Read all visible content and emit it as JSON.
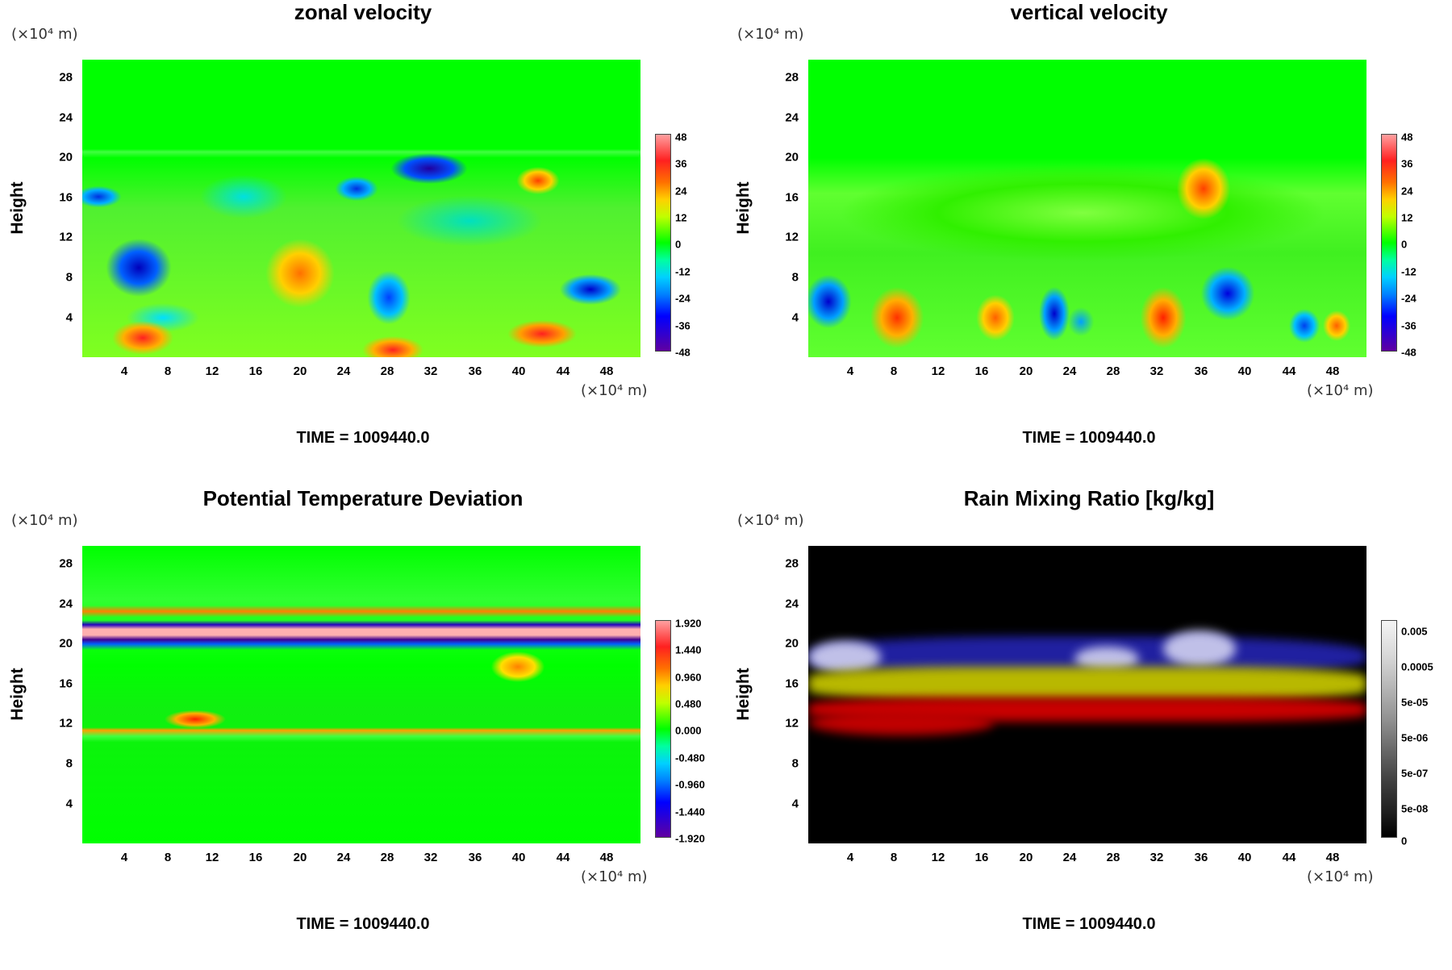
{
  "chart_data": [
    {
      "type": "heatmap",
      "title": "zonal velocity",
      "ylabel": "Height",
      "x_unit": "(×10⁴ m)",
      "y_unit": "(×10⁴ m)",
      "x_ticks": [
        "4",
        "8",
        "12",
        "16",
        "20",
        "24",
        "28",
        "32",
        "36",
        "40",
        "44",
        "48"
      ],
      "y_ticks": [
        "28",
        "24",
        "20",
        "16",
        "12",
        "8",
        "4"
      ],
      "colorbar_ticks": [
        "48",
        "36",
        "24",
        "12",
        "0",
        "-12",
        "-24",
        "-36",
        "-48"
      ],
      "colorbar_range": [
        -48,
        48
      ],
      "annotation": "TIME = 1009440.0",
      "colors": {
        "background": "#00ff00",
        "high": "#ff0000",
        "low": "#0000cc"
      }
    },
    {
      "type": "heatmap",
      "title": "vertical velocity",
      "ylabel": "Height",
      "x_unit": "(×10⁴ m)",
      "y_unit": "(×10⁴ m)",
      "x_ticks": [
        "4",
        "8",
        "12",
        "16",
        "20",
        "24",
        "28",
        "32",
        "36",
        "40",
        "44",
        "48"
      ],
      "y_ticks": [
        "28",
        "24",
        "20",
        "16",
        "12",
        "8",
        "4"
      ],
      "colorbar_ticks": [
        "48",
        "36",
        "24",
        "12",
        "0",
        "-12",
        "-24",
        "-36",
        "-48"
      ],
      "colorbar_range": [
        -48,
        48
      ],
      "annotation": "TIME = 1009440.0",
      "colors": {
        "background": "#00ff00",
        "high": "#ff0000",
        "low": "#0000cc"
      }
    },
    {
      "type": "heatmap",
      "title": "Potential Temperature Deviation",
      "ylabel": "Height",
      "x_unit": "(×10⁴ m)",
      "y_unit": "(×10⁴ m)",
      "x_ticks": [
        "4",
        "8",
        "12",
        "16",
        "20",
        "24",
        "28",
        "32",
        "36",
        "40",
        "44",
        "48"
      ],
      "y_ticks": [
        "28",
        "24",
        "20",
        "16",
        "12",
        "8",
        "4"
      ],
      "colorbar_ticks": [
        "1.920",
        "1.440",
        "0.960",
        "0.480",
        "0.000",
        "-0.480",
        "-0.960",
        "-1.440",
        "-1.920"
      ],
      "colorbar_range": [
        -1.92,
        1.92
      ],
      "annotation": "TIME = 1009440.0",
      "colors": {
        "background": "#00ff00",
        "high": "#ff0000",
        "low": "#0000cc"
      }
    },
    {
      "type": "heatmap",
      "title": "Rain Mixing Ratio [kg/kg]",
      "ylabel": "Height",
      "x_unit": "(×10⁴ m)",
      "y_unit": "(×10⁴ m)",
      "x_ticks": [
        "4",
        "8",
        "12",
        "16",
        "20",
        "24",
        "28",
        "32",
        "36",
        "40",
        "44",
        "48"
      ],
      "y_ticks": [
        "28",
        "24",
        "20",
        "16",
        "12",
        "8",
        "4"
      ],
      "colorbar_ticks": [
        "0.005",
        "0.0005",
        "5e-05",
        "5e-06",
        "5e-07",
        "5e-08",
        "0"
      ],
      "annotation": "TIME = 1009440.0",
      "colors": {
        "background": "#000000",
        "top_layer": "#2020a0",
        "mid_layer": "#c8c800",
        "low_layer": "#c80000"
      }
    }
  ]
}
